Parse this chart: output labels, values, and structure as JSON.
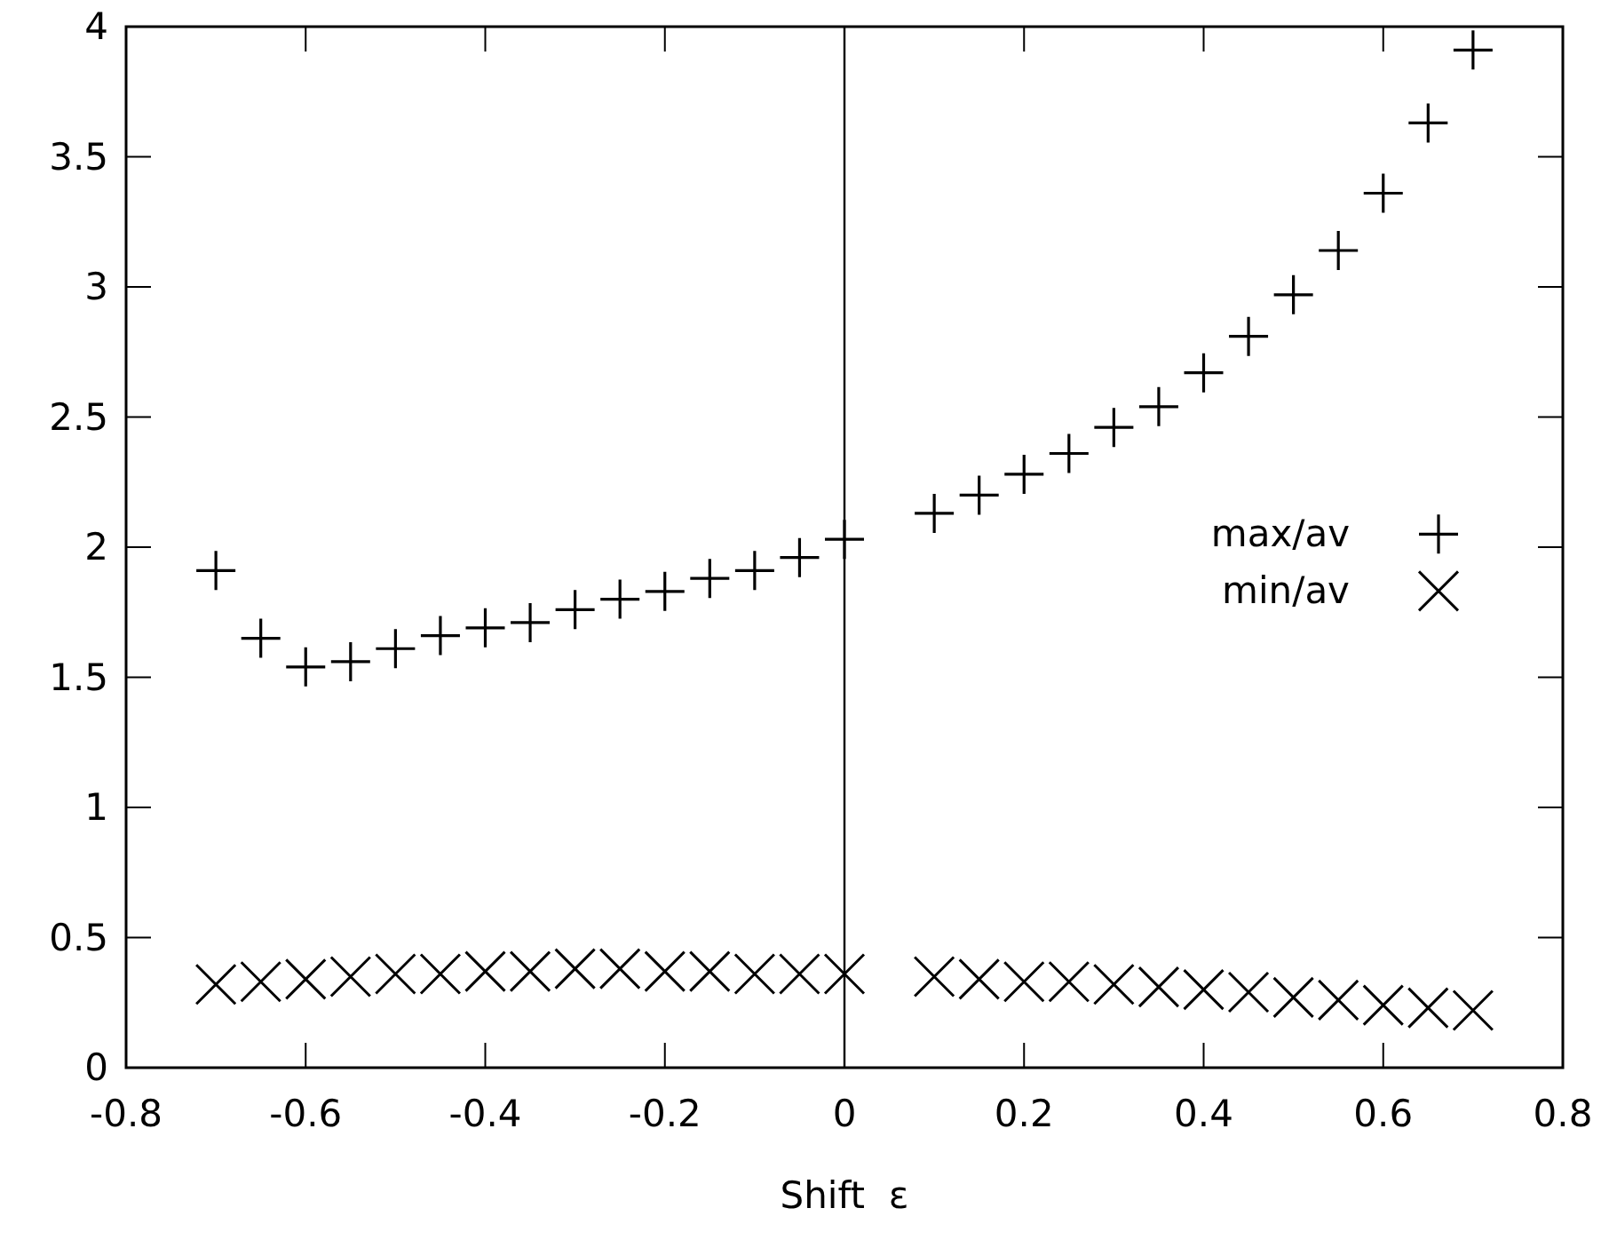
{
  "chart_data": {
    "type": "scatter",
    "xlabel": "Shift  ε",
    "x": [
      -0.7,
      -0.65,
      -0.6,
      -0.55,
      -0.5,
      -0.45,
      -0.4,
      -0.35,
      -0.3,
      -0.25,
      -0.2,
      -0.15,
      -0.1,
      -0.05,
      0,
      0.1,
      0.15,
      0.2,
      0.25,
      0.3,
      0.35,
      0.4,
      0.45,
      0.5,
      0.55,
      0.6,
      0.65,
      0.7
    ],
    "series": [
      {
        "name": "max/av",
        "color": "#000000",
        "marker": "cross",
        "values": [
          1.91,
          1.65,
          1.54,
          1.56,
          1.61,
          1.66,
          1.69,
          1.71,
          1.76,
          1.8,
          1.83,
          1.88,
          1.91,
          1.96,
          2.03,
          2.13,
          2.2,
          2.28,
          2.36,
          2.46,
          2.54,
          2.67,
          2.81,
          2.97,
          3.14,
          3.36,
          3.63,
          3.91
        ]
      },
      {
        "name": "min/av",
        "color": "#000000",
        "marker": "x",
        "values": [
          0.32,
          0.33,
          0.34,
          0.35,
          0.36,
          0.36,
          0.37,
          0.37,
          0.38,
          0.38,
          0.37,
          0.37,
          0.36,
          0.36,
          0.36,
          0.35,
          0.34,
          0.33,
          0.33,
          0.32,
          0.31,
          0.3,
          0.29,
          0.27,
          0.26,
          0.24,
          0.23,
          0.22
        ]
      }
    ],
    "xlim": [
      -0.8,
      0.8
    ],
    "xticks": [
      -0.8,
      -0.6,
      -0.4,
      -0.2,
      0,
      0.2,
      0.4,
      0.6,
      0.8
    ],
    "ylim": [
      0,
      4
    ],
    "yticks": [
      0,
      0.5,
      1,
      1.5,
      2,
      2.5,
      3,
      3.5,
      4
    ],
    "ref_lines": [
      {
        "axis": "x",
        "value": 0,
        "color": "#000000"
      }
    ],
    "grid": false,
    "legend": "right"
  }
}
